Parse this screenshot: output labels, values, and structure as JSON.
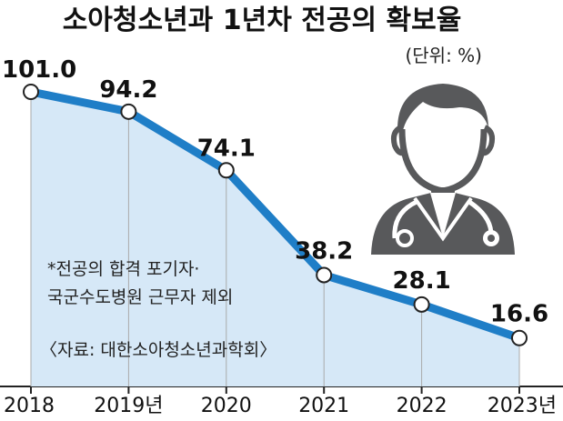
{
  "title": "소아청소년과 1년차 전공의 확보율",
  "unit": "(단위: %)",
  "note_lines": [
    "*전공의 합격 포기자·",
    "국군수도병원 근무자 제외"
  ],
  "source": "〈자료: 대한소아청소년과학회〉",
  "colors": {
    "line": "#1f7ec7",
    "area": "#d6e8f7",
    "title": "#111111",
    "icon": "#58595b"
  },
  "icon": "doctor-icon",
  "chart_data": {
    "type": "area",
    "title": "소아청소년과 1년차 전공의 확보율",
    "x": [
      "2018",
      "2019",
      "2020",
      "2021",
      "2022",
      "2023"
    ],
    "tick_labels": [
      "2018",
      "2019년",
      "2020",
      "2021",
      "2022",
      "2023년"
    ],
    "values": [
      101.0,
      94.2,
      74.1,
      38.2,
      28.1,
      16.6
    ],
    "value_labels": [
      "101.0",
      "94.2",
      "74.1",
      "38.2",
      "28.1",
      "16.6"
    ],
    "ylim": [
      0,
      105
    ],
    "grid": false,
    "legend": "none"
  }
}
